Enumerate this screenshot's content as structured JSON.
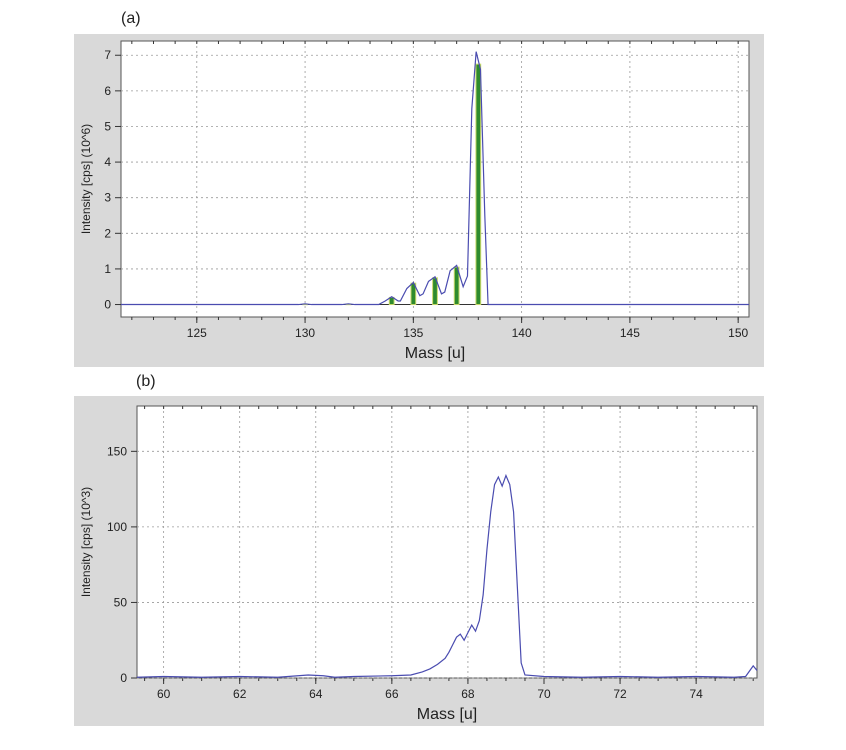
{
  "chart_data": [
    {
      "panel": "(a)",
      "type": "bar",
      "xlabel": "Mass [u]",
      "ylabel": "Intensity [cps] (10^6)",
      "xlim": [
        121.5,
        150.5
      ],
      "ylim": [
        -0.35,
        7.4
      ],
      "xticks": [
        125,
        130,
        135,
        140,
        145,
        150
      ],
      "yticks": [
        0,
        1,
        2,
        3,
        4,
        5,
        6,
        7
      ],
      "grid": true,
      "bars": [
        {
          "x": 130,
          "y": 0.01
        },
        {
          "x": 132,
          "y": 0.01
        },
        {
          "x": 134,
          "y": 0.2
        },
        {
          "x": 135,
          "y": 0.6
        },
        {
          "x": 136,
          "y": 0.75
        },
        {
          "x": 137,
          "y": 1.05
        },
        {
          "x": 138,
          "y": 6.75
        }
      ],
      "trace": [
        [
          121.5,
          0
        ],
        [
          129.7,
          0
        ],
        [
          130,
          0.02
        ],
        [
          130.3,
          0
        ],
        [
          131.7,
          0
        ],
        [
          132,
          0.02
        ],
        [
          132.3,
          0
        ],
        [
          133.4,
          0
        ],
        [
          133.7,
          0.1
        ],
        [
          134,
          0.22
        ],
        [
          134.3,
          0.1
        ],
        [
          134.4,
          0.1
        ],
        [
          134.7,
          0.45
        ],
        [
          135,
          0.62
        ],
        [
          135.3,
          0.25
        ],
        [
          135.45,
          0.3
        ],
        [
          135.7,
          0.65
        ],
        [
          136,
          0.78
        ],
        [
          136.3,
          0.3
        ],
        [
          136.45,
          0.35
        ],
        [
          136.7,
          0.95
        ],
        [
          137,
          1.1
        ],
        [
          137.3,
          0.5
        ],
        [
          137.5,
          0.8
        ],
        [
          137.7,
          5.5
        ],
        [
          137.9,
          7.1
        ],
        [
          138.1,
          6.6
        ],
        [
          138.3,
          2.5
        ],
        [
          138.45,
          0
        ],
        [
          150.5,
          0
        ]
      ]
    },
    {
      "panel": "(b)",
      "type": "line",
      "xlabel": "Mass [u]",
      "ylabel": "Intensity [cps] (10^3)",
      "xlim": [
        59.3,
        75.6
      ],
      "ylim": [
        0,
        180
      ],
      "xticks": [
        60,
        62,
        64,
        66,
        68,
        70,
        72,
        74
      ],
      "yticks": [
        0,
        50,
        100,
        150
      ],
      "grid": true,
      "series": [
        {
          "values": [
            [
              59.3,
              0.5
            ],
            [
              60,
              1
            ],
            [
              61,
              0.5
            ],
            [
              62,
              1
            ],
            [
              63,
              0.5
            ],
            [
              63.8,
              2
            ],
            [
              64.2,
              1.5
            ],
            [
              64.5,
              0.5
            ],
            [
              65,
              1
            ],
            [
              66,
              1.5
            ],
            [
              66.5,
              2
            ],
            [
              66.8,
              4
            ],
            [
              67,
              6
            ],
            [
              67.2,
              9
            ],
            [
              67.4,
              13
            ],
            [
              67.5,
              17
            ],
            [
              67.6,
              22
            ],
            [
              67.7,
              27
            ],
            [
              67.8,
              29
            ],
            [
              67.9,
              25
            ],
            [
              68,
              30
            ],
            [
              68.1,
              35
            ],
            [
              68.2,
              31
            ],
            [
              68.3,
              38
            ],
            [
              68.4,
              55
            ],
            [
              68.5,
              85
            ],
            [
              68.6,
              110
            ],
            [
              68.7,
              128
            ],
            [
              68.8,
              133
            ],
            [
              68.9,
              127
            ],
            [
              69,
              134
            ],
            [
              69.1,
              128
            ],
            [
              69.2,
              110
            ],
            [
              69.3,
              60
            ],
            [
              69.4,
              10
            ],
            [
              69.5,
              2
            ],
            [
              70,
              1
            ],
            [
              71,
              0.5
            ],
            [
              72,
              1
            ],
            [
              73,
              0.5
            ],
            [
              74,
              1
            ],
            [
              75,
              0.5
            ],
            [
              75.3,
              1
            ],
            [
              75.5,
              8
            ],
            [
              75.6,
              5
            ]
          ]
        }
      ]
    }
  ]
}
